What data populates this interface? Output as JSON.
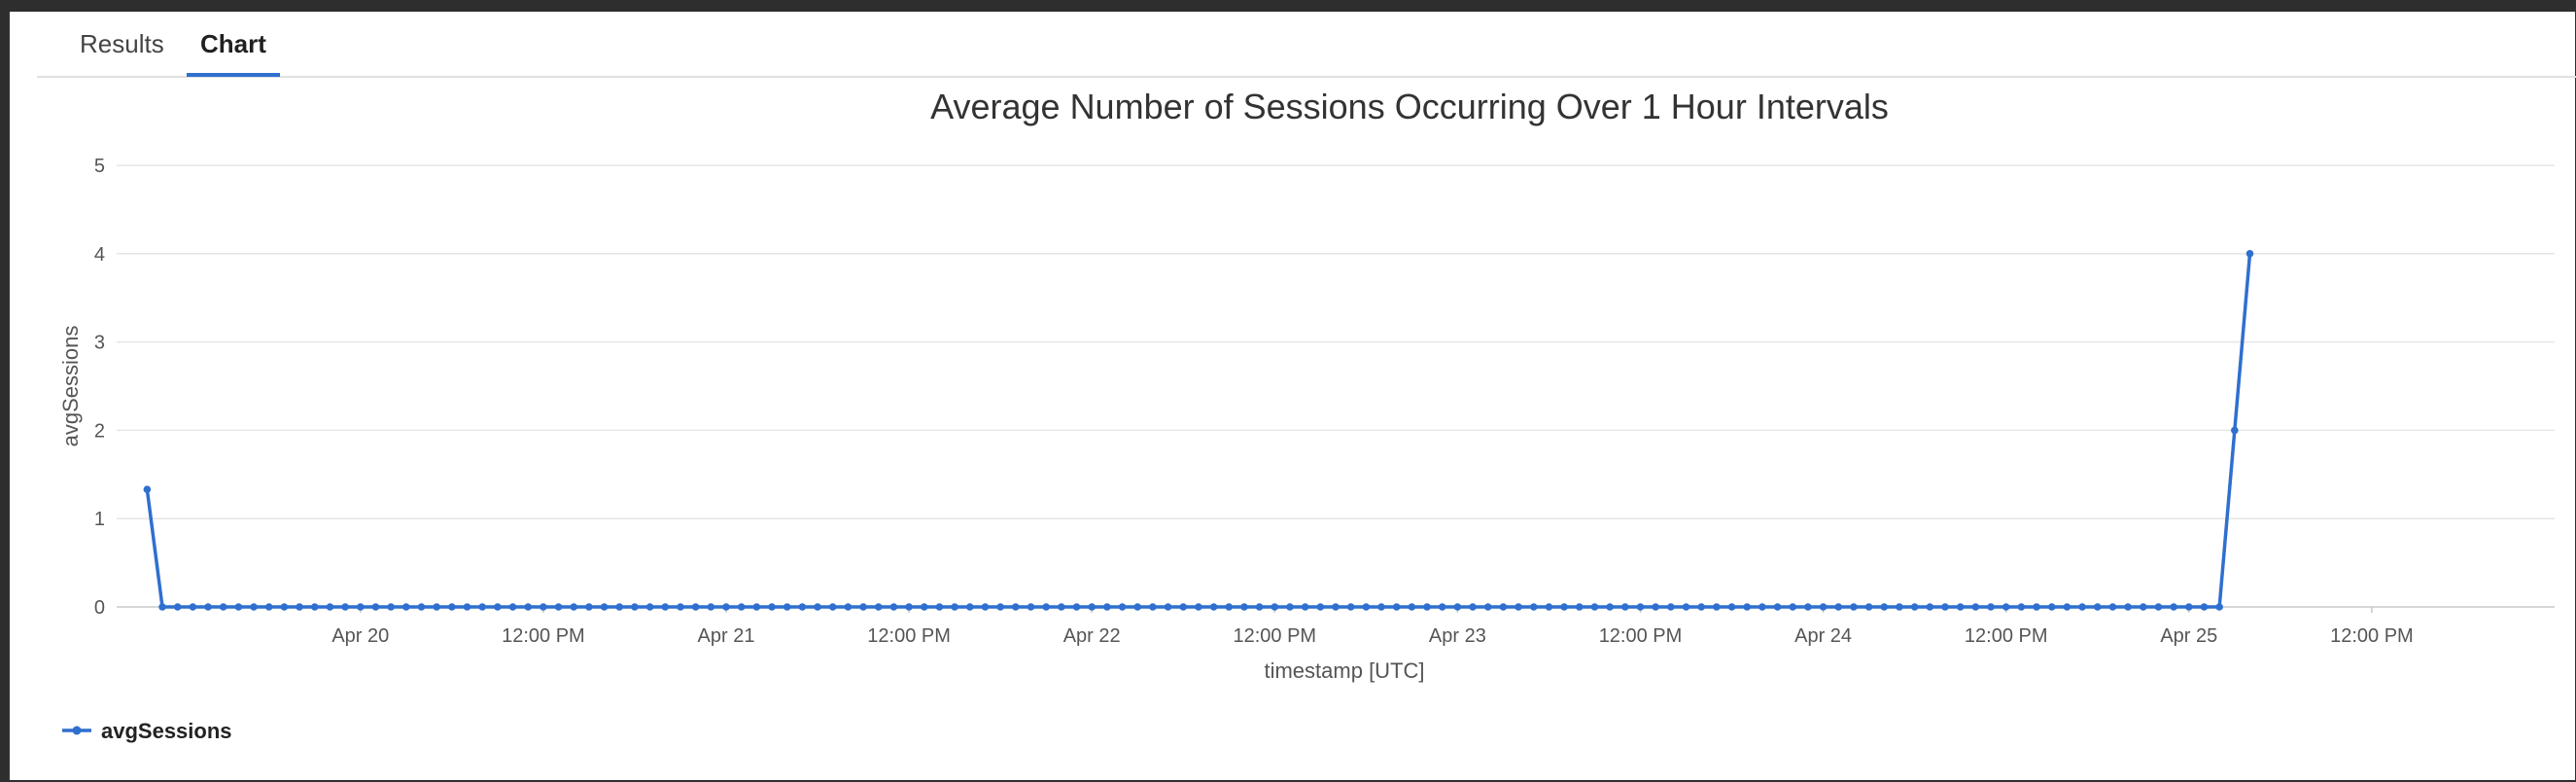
{
  "tabs": [
    {
      "label": "Results",
      "active": false
    },
    {
      "label": "Chart",
      "active": true
    }
  ],
  "chart_data": {
    "type": "line",
    "title": "Average Number of Sessions Occurring Over 1 Hour Intervals",
    "xlabel": "timestamp [UTC]",
    "ylabel": "avgSessions",
    "ylim": [
      0,
      5
    ],
    "yticks": [
      0,
      1,
      2,
      3,
      4,
      5
    ],
    "xlim": [
      "2025-04-19T08:00Z",
      "2025-04-26T00:00Z"
    ],
    "xticks": [
      {
        "t": "2025-04-20T00:00Z",
        "label": "Apr 20"
      },
      {
        "t": "2025-04-20T12:00Z",
        "label": "12:00 PM"
      },
      {
        "t": "2025-04-21T00:00Z",
        "label": "Apr 21"
      },
      {
        "t": "2025-04-21T12:00Z",
        "label": "12:00 PM"
      },
      {
        "t": "2025-04-22T00:00Z",
        "label": "Apr 22"
      },
      {
        "t": "2025-04-22T12:00Z",
        "label": "12:00 PM"
      },
      {
        "t": "2025-04-23T00:00Z",
        "label": "Apr 23"
      },
      {
        "t": "2025-04-23T12:00Z",
        "label": "12:00 PM"
      },
      {
        "t": "2025-04-24T00:00Z",
        "label": "Apr 24"
      },
      {
        "t": "2025-04-24T12:00Z",
        "label": "12:00 PM"
      },
      {
        "t": "2025-04-25T00:00Z",
        "label": "Apr 25"
      },
      {
        "t": "2025-04-25T12:00Z",
        "label": "12:00 PM"
      }
    ],
    "grid": true,
    "legend_position": "bottom-left",
    "series": [
      {
        "name": "avgSessions",
        "color": "#2f6fcf",
        "start": "2025-04-19T10:00Z",
        "interval_hours": 1,
        "leading_values": [
          1.33
        ],
        "repeated_value": 0,
        "repeated_count": 136,
        "trailing_values": [
          2,
          4
        ]
      }
    ]
  }
}
